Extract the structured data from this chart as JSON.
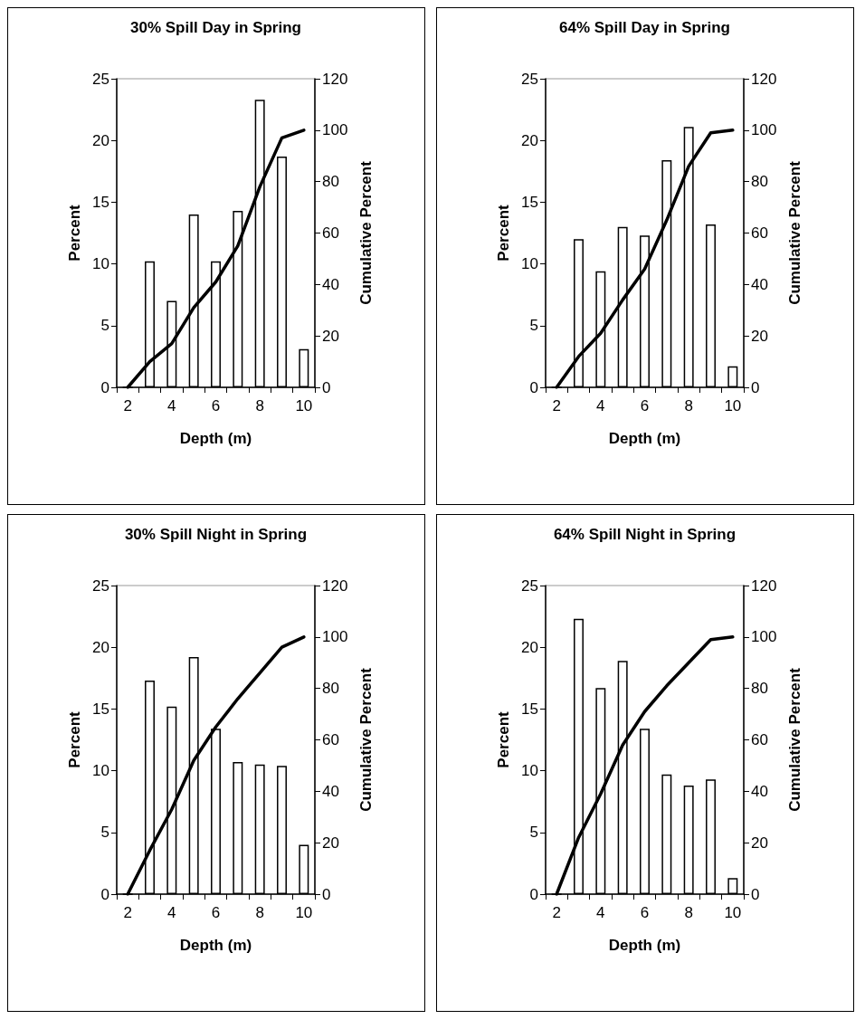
{
  "chart_data": [
    {
      "type": "bar",
      "title": "30% Spill Day in Spring",
      "xlabel": "Depth (m)",
      "ylabel": "Percent",
      "y2label": "Cumulative Percent",
      "categories": [
        "2",
        null,
        "4",
        null,
        "6",
        null,
        "8",
        null,
        "10"
      ],
      "ylim": [
        0,
        25
      ],
      "yticks": [
        0,
        5,
        10,
        15,
        20,
        25
      ],
      "y2lim": [
        0,
        120
      ],
      "y2ticks": [
        0,
        20,
        40,
        60,
        80,
        100,
        120
      ],
      "grid": false,
      "series": [
        {
          "color": "#ffffff",
          "values": [
            0,
            10.2,
            7,
            14,
            10.2,
            14.3,
            23.3,
            18.7,
            3.1
          ]
        },
        {
          "type": "line",
          "axis": "y2",
          "color": "#000000",
          "values": [
            0,
            10,
            17,
            31,
            41,
            55,
            78,
            97,
            100
          ]
        }
      ]
    },
    {
      "type": "bar",
      "title": "64% Spill Day in Spring",
      "xlabel": "Depth (m)",
      "ylabel": "Percent",
      "y2label": "Cumulative Percent",
      "categories": [
        "2",
        null,
        "4",
        null,
        "6",
        null,
        "8",
        null,
        "10"
      ],
      "ylim": [
        0,
        25
      ],
      "yticks": [
        0,
        5,
        10,
        15,
        20,
        25
      ],
      "y2lim": [
        0,
        120
      ],
      "y2ticks": [
        0,
        20,
        40,
        60,
        80,
        100,
        120
      ],
      "grid": false,
      "series": [
        {
          "color": "#ffffff",
          "values": [
            0,
            12,
            9.4,
            13,
            12.3,
            18.4,
            21.1,
            13.2,
            1.7
          ]
        },
        {
          "type": "line",
          "axis": "y2",
          "color": "#000000",
          "values": [
            0,
            12,
            21,
            34,
            46,
            65,
            86,
            99,
            100
          ]
        }
      ]
    },
    {
      "type": "bar",
      "title": "30% Spill Night in Spring",
      "xlabel": "Depth (m)",
      "ylabel": "Percent",
      "y2label": "Cumulative Percent",
      "categories": [
        "2",
        null,
        "4",
        null,
        "6",
        null,
        "8",
        null,
        "10"
      ],
      "ylim": [
        0,
        25
      ],
      "yticks": [
        0,
        5,
        10,
        15,
        20,
        25
      ],
      "y2lim": [
        0,
        120
      ],
      "y2ticks": [
        0,
        20,
        40,
        60,
        80,
        100,
        120
      ],
      "grid": false,
      "series": [
        {
          "color": "#ffffff",
          "values": [
            0,
            17.3,
            15.2,
            19.2,
            13.4,
            10.7,
            10.5,
            10.4,
            4
          ]
        },
        {
          "type": "line",
          "axis": "y2",
          "color": "#000000",
          "values": [
            0,
            17,
            33,
            52,
            65,
            76,
            86,
            96,
            100
          ]
        }
      ]
    },
    {
      "type": "bar",
      "title": "64% Spill Night in Spring",
      "xlabel": "Depth (m)",
      "ylabel": "Percent",
      "y2label": "Cumulative Percent",
      "categories": [
        "2",
        null,
        "4",
        null,
        "6",
        null,
        "8",
        null,
        "10"
      ],
      "ylim": [
        0,
        25
      ],
      "yticks": [
        0,
        5,
        10,
        15,
        20,
        25
      ],
      "y2lim": [
        0,
        120
      ],
      "y2ticks": [
        0,
        20,
        40,
        60,
        80,
        100,
        120
      ],
      "grid": false,
      "series": [
        {
          "color": "#ffffff",
          "values": [
            0,
            22.3,
            16.7,
            18.9,
            13.4,
            9.7,
            8.8,
            9.3,
            1.3
          ]
        },
        {
          "type": "line",
          "axis": "y2",
          "color": "#000000",
          "values": [
            0,
            22,
            39,
            58,
            71,
            81,
            90,
            99,
            100
          ]
        }
      ]
    }
  ]
}
